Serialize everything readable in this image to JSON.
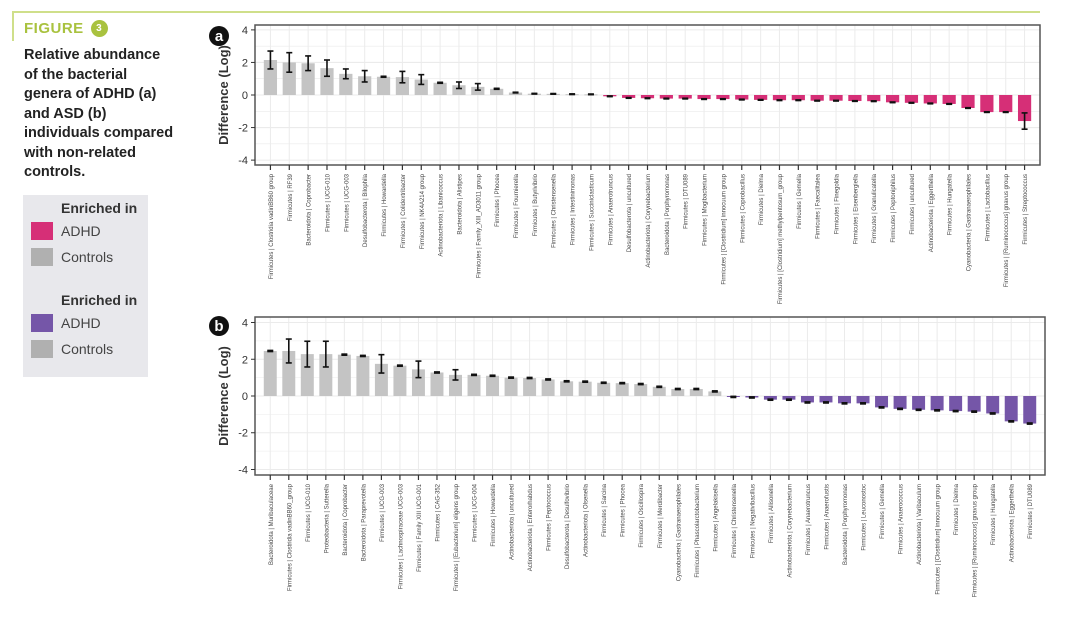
{
  "figure": {
    "label": "FIGURE",
    "number": "3",
    "caption": "Relative abundance of the bacterial genera of ADHD (a) and ASD (b) individuals compared with non-related controls."
  },
  "legend": {
    "groups": [
      {
        "title": "Enriched in",
        "items": [
          {
            "label": "ADHD",
            "color": "#d62f77"
          },
          {
            "label": "Controls",
            "color": "#b0b0b0"
          }
        ]
      },
      {
        "title": "Enriched in",
        "items": [
          {
            "label": "ADHD",
            "color": "#7556a8"
          },
          {
            "label": "Controls",
            "color": "#b0b0b0"
          }
        ]
      }
    ]
  },
  "chart_data": [
    {
      "type": "bar",
      "panel": "a",
      "title": "",
      "xlabel": "",
      "ylabel": "Difference (Log)",
      "ylim": [
        -4.3,
        4.3
      ],
      "yticks": [
        -4,
        -2,
        0,
        2,
        4
      ],
      "grid": true,
      "positive_color": "#c4c4c4",
      "negative_color": "#d62f77",
      "categories": [
        "Firmicutes | Clostridia vadinBB60 group",
        "Firmicutes | RF39",
        "Bacteroidota | Coprobacter",
        "Firmicutes | UCG-010",
        "Firmicutes | UCG-003",
        "Desulfobacterota | Bilophila",
        "Firmicutes | Howardella",
        "Firmicutes | Colidextribacter",
        "Firmicutes | NK4A214 group",
        "Actinobacteriota | Libanicoccus",
        "Bacteroidota | Alistipes",
        "Firmicutes | Family_XIII_AD3011 group",
        "Firmicutes | Phocea",
        "Firmicutes | Fournierella",
        "Firmicutes | Butyrivibrio",
        "Firmicutes | Christensenella",
        "Firmicutes | Intestinimonas",
        "Firmicutes | Succiniclasticum",
        "Firmicutes | Anaerotruncus",
        "Desulfobacterota | uncultured",
        "Actinobacteriota | Corynebacterium",
        "Bacteroidota | Porphyromonas",
        "Firmicutes | DTU089",
        "Firmicutes | Mogibacterium",
        "Firmicutes | [Clostridium] innocuum group",
        "Firmicutes | Coprobacillus",
        "Firmicutes | Dielma",
        "Firmicutes | [Clostridium] methylpentosum_group",
        "Firmicutes | Gemella",
        "Firmicutes | Faecalitalea",
        "Firmicutes | Finegoldia",
        "Firmicutes | Eisenbergiella",
        "Firmicutes | Granulicatella",
        "Firmicutes | Peptoniphilus",
        "Firmicutes | uncultured",
        "Actinobacteriota | Eggerthella",
        "Firmicutes | Hungatella",
        "Cyanobacteria | Gastranaerophilales",
        "Firmicutes | Lactobacillus",
        "Firmicutes | [Ruminococcus] gnavus group",
        "Firmicutes | Streptococcus"
      ],
      "values": [
        2.15,
        2.0,
        1.95,
        1.65,
        1.3,
        1.15,
        1.12,
        1.1,
        0.95,
        0.75,
        0.6,
        0.5,
        0.38,
        0.15,
        0.08,
        0.07,
        0.05,
        0.04,
        -0.08,
        -0.18,
        -0.2,
        -0.22,
        -0.22,
        -0.25,
        -0.25,
        -0.28,
        -0.3,
        -0.32,
        -0.32,
        -0.35,
        -0.35,
        -0.37,
        -0.38,
        -0.45,
        -0.48,
        -0.52,
        -0.55,
        -0.8,
        -1.05,
        -1.05,
        -1.6
      ],
      "errors": [
        0.55,
        0.6,
        0.45,
        0.5,
        0.3,
        0.35,
        0.03,
        0.35,
        0.3,
        0.03,
        0.2,
        0.2,
        0.03,
        0.02,
        0.02,
        0.02,
        0.02,
        0.02,
        0.02,
        0.02,
        0.02,
        0.02,
        0.02,
        0.02,
        0.02,
        0.02,
        0.02,
        0.02,
        0.02,
        0.02,
        0.02,
        0.02,
        0.02,
        0.02,
        0.02,
        0.02,
        0.02,
        0.02,
        0.02,
        0.02,
        0.5
      ]
    },
    {
      "type": "bar",
      "panel": "b",
      "title": "",
      "xlabel": "",
      "ylabel": "Difference (Log)",
      "ylim": [
        -4.3,
        4.3
      ],
      "yticks": [
        -4,
        -2,
        0,
        2,
        4
      ],
      "grid": true,
      "positive_color": "#c4c4c4",
      "negative_color": "#7556a8",
      "categories": [
        "Bacteroidota | Muribaculaceae",
        "Firmicutes | Clostridia vadinBB60_group",
        "Firmicutes | UCG-010",
        "Proteobacteria | Sutterella",
        "Bacteroidota | Coprobacter",
        "Bacteroidota | Paraprevotella",
        "Firmicutes | UCG-003",
        "Firmicutes | Lachnospiraceae UCG-003",
        "Firmicutes | Family XIII UCG-001",
        "Firmicutes | CAG-352",
        "Firmicutes | [Eubacterium] eligens group",
        "Firmicutes | UCG-004",
        "Firmicutes | Howardella",
        "Actinobacteriota | uncultured",
        "Actinobacteriota | Enterorhabdus",
        "Firmicutes | Peptococcus",
        "Desulfobacterota | Desulfovibrio",
        "Actinobacteriota | Olsenella",
        "Firmicutes | Sarcina",
        "Firmicutes | Phocea",
        "Firmicutes | Oscillospira",
        "Firmicutes | Merdibacter",
        "Cyanobacteria | Gastranaerophilales",
        "Firmicutes | Phascolarctobacterium",
        "Firmicutes | Angelakisella",
        "Firmicutes | Christensenella",
        "Firmicutes | Negativibacillus",
        "Firmicutes | Allisonella",
        "Actinobacteriota | Corynebacterium",
        "Firmicutes | Anaerotruncus",
        "Firmicutes | Anaerofustis",
        "Bacteroidota | Porphyromonas",
        "Firmicutes | Leuconostoc",
        "Firmicutes | Gemella",
        "Firmicutes | Anaerococcus",
        "Actinobacteriota | Varibaculum",
        "Firmicutes | [Clostridium] innocuum group",
        "Firmicutes | Dielma",
        "Firmicutes | [Ruminococcus] gnavus group",
        "Firmicutes | Hungatella",
        "Actinobacteriota | Eggerthella",
        "Firmicutes | DTU089"
      ],
      "values": [
        2.45,
        2.45,
        2.28,
        2.28,
        2.25,
        2.18,
        1.75,
        1.65,
        1.45,
        1.28,
        1.15,
        1.15,
        1.1,
        1.0,
        0.98,
        0.9,
        0.8,
        0.78,
        0.72,
        0.7,
        0.65,
        0.5,
        0.38,
        0.38,
        0.25,
        -0.05,
        -0.08,
        -0.2,
        -0.2,
        -0.35,
        -0.35,
        -0.4,
        -0.4,
        -0.62,
        -0.7,
        -0.75,
        -0.78,
        -0.82,
        -0.85,
        -0.95,
        -1.38,
        -1.5
      ],
      "errors": [
        0.03,
        0.65,
        0.7,
        0.7,
        0.03,
        0.03,
        0.5,
        0.03,
        0.45,
        0.03,
        0.28,
        0.03,
        0.03,
        0.03,
        0.03,
        0.03,
        0.03,
        0.03,
        0.03,
        0.03,
        0.03,
        0.03,
        0.03,
        0.03,
        0.03,
        0.03,
        0.03,
        0.03,
        0.03,
        0.03,
        0.03,
        0.03,
        0.03,
        0.03,
        0.03,
        0.03,
        0.03,
        0.03,
        0.03,
        0.03,
        0.03,
        0.03
      ]
    }
  ]
}
